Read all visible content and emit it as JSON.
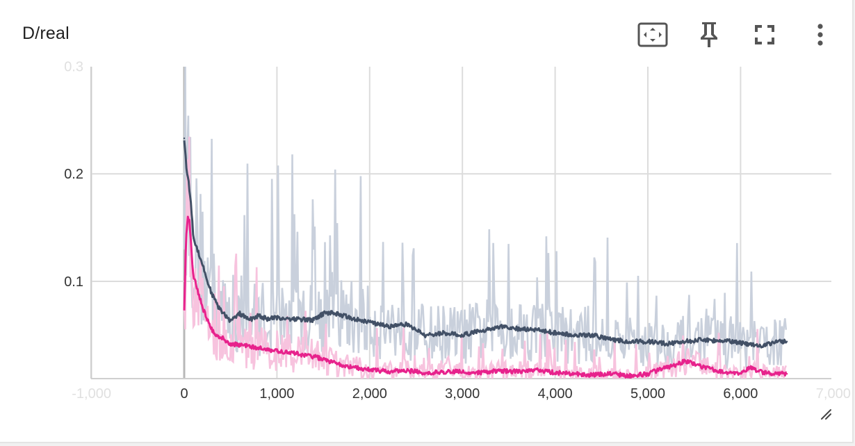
{
  "card": {
    "title": "D/real"
  },
  "toolbar": {
    "icons": [
      "fit-to-data-icon",
      "pin-icon",
      "fullscreen-icon",
      "more-vert-icon"
    ]
  },
  "chart_data": {
    "type": "line",
    "title": "D/real",
    "xlabel": "",
    "ylabel": "",
    "xlim": [
      -1000,
      7000
    ],
    "ylim": [
      0.009,
      0.3
    ],
    "grid": true,
    "legend": "none",
    "x_tick_labels": [
      "-1,000",
      "0",
      "1,000",
      "2,000",
      "3,000",
      "4,000",
      "5,000",
      "6,000",
      "7,000"
    ],
    "x_tick_values": [
      -1000,
      0,
      1000,
      2000,
      3000,
      4000,
      5000,
      6000,
      7000
    ],
    "y_tick_labels": [
      "0.1",
      "0.2",
      "0.3"
    ],
    "y_tick_values": [
      0.1,
      0.2,
      0.3
    ],
    "series": [
      {
        "color": "#425066",
        "raw_color": "#c9d0dc",
        "x": [
          0,
          25,
          50,
          75,
          100,
          150,
          200,
          250,
          300,
          350,
          400,
          450,
          500,
          600,
          700,
          800,
          900,
          1000,
          1200,
          1400,
          1500,
          1600,
          1800,
          2000,
          2200,
          2400,
          2600,
          2800,
          3000,
          3200,
          3400,
          3600,
          3800,
          4000,
          4200,
          4400,
          4600,
          4800,
          5000,
          5200,
          5400,
          5600,
          5700,
          5800,
          6000,
          6200,
          6400,
          6500
        ],
        "y": [
          0.233,
          0.205,
          0.19,
          0.17,
          0.14,
          0.128,
          0.115,
          0.1,
          0.088,
          0.079,
          0.072,
          0.068,
          0.063,
          0.07,
          0.064,
          0.068,
          0.065,
          0.066,
          0.065,
          0.064,
          0.07,
          0.071,
          0.066,
          0.062,
          0.058,
          0.06,
          0.05,
          0.052,
          0.05,
          0.054,
          0.058,
          0.056,
          0.055,
          0.052,
          0.05,
          0.05,
          0.046,
          0.044,
          0.044,
          0.042,
          0.044,
          0.046,
          0.045,
          0.045,
          0.043,
          0.04,
          0.044,
          0.044
        ]
      },
      {
        "color": "#e7228c",
        "raw_color": "#f7c3de",
        "x": [
          0,
          20,
          40,
          60,
          80,
          100,
          150,
          200,
          250,
          300,
          350,
          400,
          500,
          600,
          700,
          800,
          1000,
          1200,
          1400,
          1600,
          1800,
          2000,
          2200,
          2400,
          2600,
          2800,
          3000,
          3200,
          3400,
          3600,
          3800,
          4000,
          4200,
          4400,
          4600,
          4800,
          5000,
          5200,
          5300,
          5400,
          5600,
          5800,
          6000,
          6100,
          6200,
          6400,
          6500
        ],
        "y": [
          0.075,
          0.14,
          0.16,
          0.155,
          0.125,
          0.105,
          0.09,
          0.075,
          0.065,
          0.055,
          0.05,
          0.048,
          0.042,
          0.041,
          0.04,
          0.038,
          0.035,
          0.033,
          0.03,
          0.025,
          0.02,
          0.018,
          0.016,
          0.017,
          0.015,
          0.016,
          0.016,
          0.015,
          0.017,
          0.016,
          0.018,
          0.015,
          0.014,
          0.013,
          0.014,
          0.012,
          0.014,
          0.02,
          0.022,
          0.026,
          0.02,
          0.016,
          0.014,
          0.02,
          0.016,
          0.014,
          0.014
        ]
      }
    ]
  }
}
